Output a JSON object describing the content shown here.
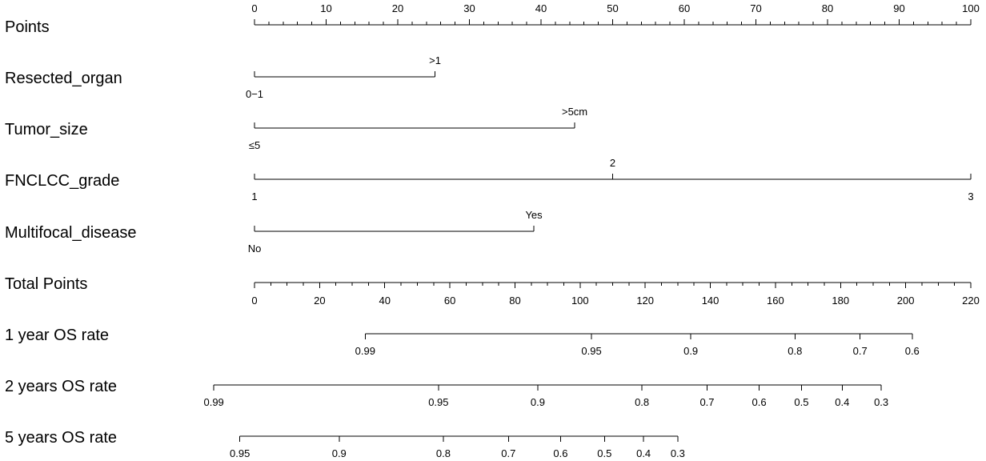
{
  "chart_data": {
    "type": "nomogram",
    "title": "",
    "points_axis": {
      "label": "Points",
      "min": 0,
      "max": 100,
      "major_ticks": [
        0,
        10,
        20,
        30,
        40,
        50,
        60,
        70,
        80,
        90,
        100
      ],
      "minor_step": 2
    },
    "variables": [
      {
        "label": "Resected_organ",
        "levels": [
          {
            "name": "0−1",
            "points": 0
          },
          {
            "name": ">1",
            "points": 25.2
          }
        ]
      },
      {
        "label": "Tumor_size",
        "levels": [
          {
            "name": "≤5",
            "points": 0
          },
          {
            "name": ">5cm",
            "points": 44.7
          }
        ]
      },
      {
        "label": "FNCLCC_grade",
        "levels": [
          {
            "name": "1",
            "points": 0
          },
          {
            "name": "2",
            "points": 50
          },
          {
            "name": "3",
            "points": 100
          }
        ]
      },
      {
        "label": "Multifocal_disease",
        "levels": [
          {
            "name": "No",
            "points": 0
          },
          {
            "name": "Yes",
            "points": 39
          }
        ]
      }
    ],
    "total_points_axis": {
      "label": "Total Points",
      "min": 0,
      "max": 220,
      "major_ticks": [
        0,
        20,
        40,
        60,
        80,
        100,
        120,
        140,
        160,
        180,
        200,
        220
      ],
      "minor_step": 5
    },
    "outcome_scales": [
      {
        "label": "1 year OS rate",
        "ticks": [
          {
            "label": "0.99",
            "total_points": 34
          },
          {
            "label": "0.95",
            "total_points": 103.5
          },
          {
            "label": "0.9",
            "total_points": 134
          },
          {
            "label": "0.8",
            "total_points": 166
          },
          {
            "label": "0.7",
            "total_points": 186
          },
          {
            "label": "0.6",
            "total_points": 202
          }
        ]
      },
      {
        "label": "2 years OS rate",
        "ticks": [
          {
            "label": "0.99",
            "total_points": -12.5
          },
          {
            "label": "0.95",
            "total_points": 56.5
          },
          {
            "label": "0.9",
            "total_points": 87
          },
          {
            "label": "0.8",
            "total_points": 119
          },
          {
            "label": "0.7",
            "total_points": 139
          },
          {
            "label": "0.6",
            "total_points": 155
          },
          {
            "label": "0.5",
            "total_points": 168
          },
          {
            "label": "0.4",
            "total_points": 180.5
          },
          {
            "label": "0.3",
            "total_points": 192.5
          }
        ]
      },
      {
        "label": "5 years OS rate",
        "ticks": [
          {
            "label": "0.95",
            "total_points": -4.5
          },
          {
            "label": "0.9",
            "total_points": 26
          },
          {
            "label": "0.8",
            "total_points": 58
          },
          {
            "label": "0.7",
            "total_points": 78
          },
          {
            "label": "0.6",
            "total_points": 94
          },
          {
            "label": "0.5",
            "total_points": 107.5
          },
          {
            "label": "0.4",
            "total_points": 119.5
          },
          {
            "label": "0.3",
            "total_points": 130
          }
        ]
      }
    ]
  }
}
